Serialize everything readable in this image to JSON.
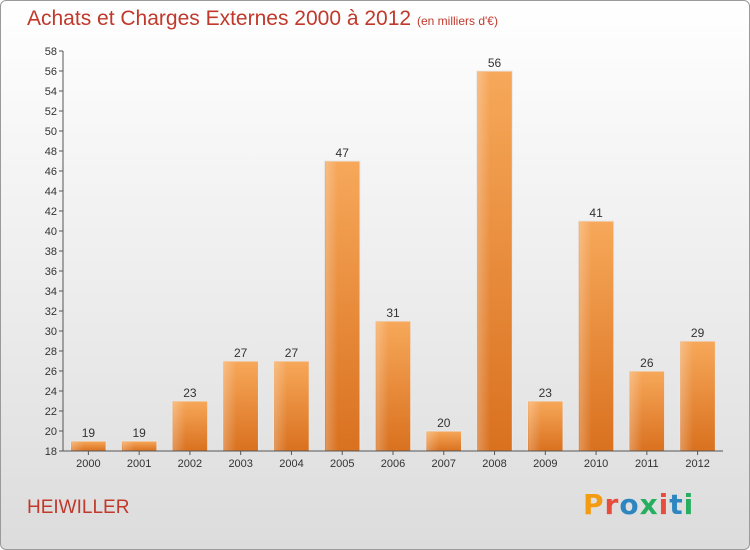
{
  "header": {
    "title": "Achats et Charges Externes 2000 à 2012",
    "subtitle": "(en milliers d'€)"
  },
  "footer": {
    "place": "HEIWILLER",
    "logo_text": "Proxiti",
    "logo_colors": [
      "#f39c12",
      "#e74c3c",
      "#2e86c1",
      "#27ae60",
      "#e74c3c",
      "#2e86c1",
      "#27ae60"
    ]
  },
  "chart_data": {
    "type": "bar",
    "title": "Achats et Charges Externes 2000 à 2012",
    "subtitle": "(en milliers d'€)",
    "xlabel": "",
    "ylabel": "",
    "categories": [
      "2000",
      "2001",
      "2002",
      "2003",
      "2004",
      "2005",
      "2006",
      "2007",
      "2008",
      "2009",
      "2010",
      "2011",
      "2012"
    ],
    "values": [
      19,
      19,
      23,
      27,
      27,
      47,
      31,
      20,
      56,
      23,
      41,
      26,
      29
    ],
    "ylim": [
      18,
      58
    ],
    "ytick_step": 2,
    "grid": false,
    "bar_color": "#f0953a"
  }
}
